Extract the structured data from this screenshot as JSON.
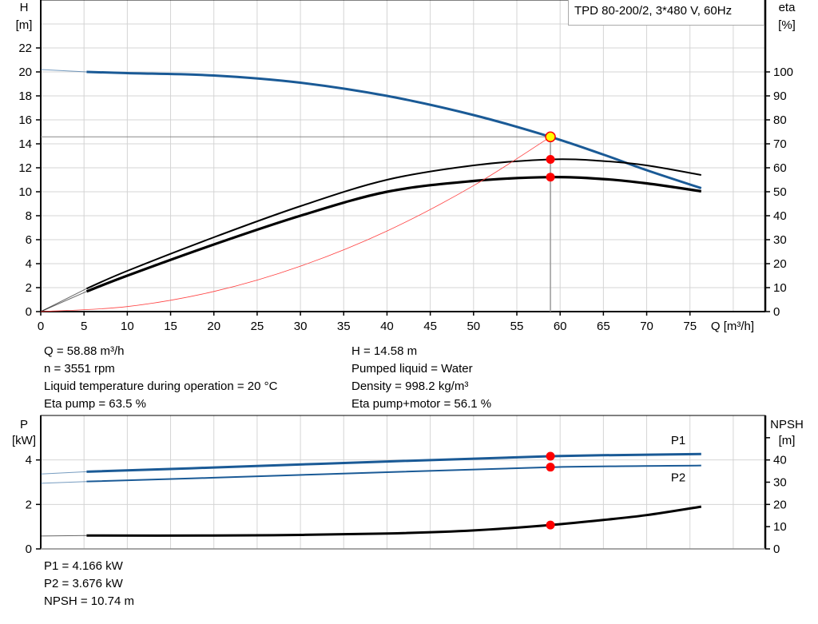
{
  "chart_data": [
    {
      "type": "line",
      "title": "TPD 80-200/2, 3*480 V, 60Hz",
      "xlabel": "Q [m³/h]",
      "ylabel_left": {
        "name": "H",
        "unit": "[m]"
      },
      "ylabel_right": {
        "name": "eta",
        "unit": "[%]"
      },
      "xlim": [
        0,
        83.7
      ],
      "ylim_left": [
        0,
        26
      ],
      "ylim_right": [
        0,
        130
      ],
      "x_ticks": [
        0,
        5,
        10,
        15,
        20,
        25,
        30,
        35,
        40,
        45,
        50,
        55,
        60,
        65,
        70,
        75
      ],
      "y_ticks_left": [
        0,
        2,
        4,
        6,
        8,
        10,
        12,
        14,
        16,
        18,
        20,
        22
      ],
      "y_ticks_right": [
        0,
        10,
        20,
        30,
        40,
        50,
        60,
        70,
        80,
        90,
        100
      ],
      "grid": true,
      "series": [
        {
          "id": "H",
          "axis": "left",
          "color": "#1a5a96",
          "x": [
            5.3,
            10,
            20,
            30,
            40,
            50,
            58.88,
            65,
            70,
            76.3
          ],
          "y": [
            20.0,
            19.9,
            19.7,
            19.1,
            18.0,
            16.4,
            14.58,
            13.1,
            11.8,
            10.3
          ],
          "extension": {
            "x": [
              0,
              5.3
            ],
            "y": [
              20.2,
              20.0
            ]
          }
        },
        {
          "id": "eta_pump",
          "axis": "right",
          "color": "#000000",
          "x": [
            5.3,
            10,
            20,
            30,
            40,
            50,
            58.88,
            65,
            70,
            76.3
          ],
          "y": [
            9.6,
            17,
            31,
            44,
            55,
            61,
            63.5,
            62.8,
            61,
            57
          ],
          "extension": {
            "x": [
              0,
              5.3
            ],
            "y": [
              0,
              9.6
            ]
          }
        },
        {
          "id": "eta_pump_motor",
          "axis": "right",
          "color": "#000000",
          "x": [
            5.3,
            10,
            20,
            30,
            40,
            50,
            58.88,
            65,
            70,
            76.3
          ],
          "y": [
            8.4,
            15,
            28,
            40,
            50,
            54.5,
            56.1,
            55.3,
            53.5,
            50.2
          ],
          "extension": {
            "x": [
              0,
              5.3
            ],
            "y": [
              0,
              8.4
            ]
          }
        },
        {
          "id": "system_curve",
          "axis": "left",
          "color": "#ff4040",
          "x": [
            0,
            10,
            20,
            30,
            40,
            50,
            58.88
          ],
          "y": [
            0,
            0.42,
            1.68,
            3.79,
            6.73,
            10.51,
            14.58
          ]
        }
      ],
      "duty_point": {
        "Q": 58.88,
        "H": 14.58,
        "eta_pump": 63.5,
        "eta_pump_motor": 56.1
      }
    },
    {
      "type": "line",
      "ylabel_left": {
        "name": "P",
        "unit": "[kW]"
      },
      "ylabel_right": {
        "name": "NPSH",
        "unit": "[m]"
      },
      "xlim": [
        0,
        83.7
      ],
      "ylim_left": [
        0,
        6
      ],
      "ylim_right": [
        0,
        60
      ],
      "y_ticks_left": [
        0,
        2,
        4
      ],
      "y_ticks_right": [
        0,
        10,
        20,
        30,
        40,
        50
      ],
      "y_tick_labels_right": [
        0,
        10,
        20,
        30,
        40
      ],
      "grid": true,
      "series": [
        {
          "id": "P1",
          "name": "P1",
          "axis": "left",
          "color": "#1a5a96",
          "x": [
            5.3,
            20,
            40,
            58.88,
            76.3
          ],
          "y": [
            3.47,
            3.66,
            3.93,
            4.166,
            4.27
          ],
          "extension": {
            "x": [
              0,
              5.3
            ],
            "y": [
              3.37,
              3.47
            ]
          }
        },
        {
          "id": "P2",
          "name": "P2",
          "axis": "left",
          "color": "#1a5a96",
          "x": [
            5.3,
            20,
            40,
            58.88,
            76.3
          ],
          "y": [
            3.03,
            3.2,
            3.45,
            3.676,
            3.75
          ],
          "extension": {
            "x": [
              0,
              5.3
            ],
            "y": [
              2.95,
              3.03
            ]
          }
        },
        {
          "id": "NPSH",
          "axis": "right",
          "color": "#000000",
          "x": [
            5.3,
            20,
            30,
            40,
            50,
            58.88,
            65,
            70,
            76.3
          ],
          "y": [
            6.0,
            6.0,
            6.3,
            6.9,
            8.3,
            10.74,
            13.0,
            15.2,
            19.0
          ],
          "extension": {
            "x": [
              0,
              5.3
            ],
            "y": [
              5.8,
              6.0
            ]
          }
        }
      ],
      "duty_point": {
        "Q": 58.88,
        "P1": 4.166,
        "P2": 3.676,
        "NPSH": 10.74
      }
    }
  ],
  "info": {
    "left": [
      "Q = 58.88 m³/h",
      "n = 3551 rpm",
      "Liquid temperature during operation = 20 °C",
      "Eta pump = 63.5 %"
    ],
    "right": [
      "H = 14.58 m",
      "Pumped liquid = Water",
      "Density = 998.2 kg/m³",
      "Eta pump+motor = 56.1 %"
    ],
    "bottom": [
      "P1 = 4.166 kW",
      "P2 = 3.676 kW",
      "NPSH = 10.74 m"
    ]
  }
}
